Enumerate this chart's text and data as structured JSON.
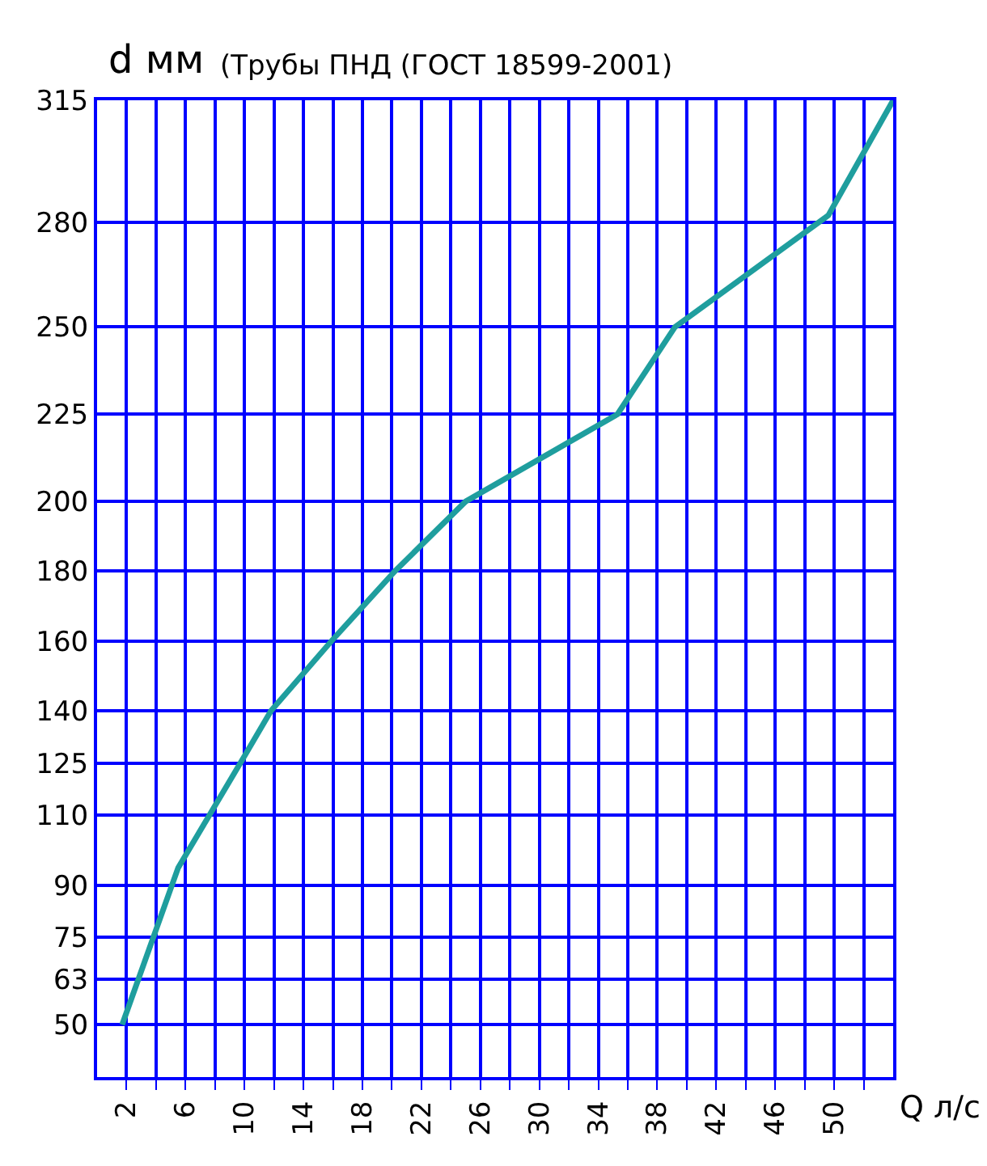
{
  "chart_data": {
    "type": "line",
    "title": "(Трубы ПНД (ГОСТ 18599-2001)",
    "xlabel": "Q л/с",
    "ylabel": "d мм",
    "x": [
      1.7,
      5.5,
      10,
      11.8,
      15.9,
      20.2,
      25,
      35.3,
      39.2,
      49.6,
      54
    ],
    "series": [
      {
        "color": "#1f9e9e",
        "values": [
          50,
          95,
          127,
          140,
          160,
          180,
          200,
          225,
          250,
          282,
          315
        ]
      }
    ],
    "xlim": [
      0,
      54
    ],
    "xticks": [
      2,
      {
        "value": 4,
        "label": null
      },
      6,
      {
        "value": 8,
        "label": null
      },
      10,
      {
        "value": 12,
        "label": null
      },
      14,
      {
        "value": 16,
        "label": null
      },
      18,
      {
        "value": 20,
        "label": null
      },
      22,
      {
        "value": 24,
        "label": null
      },
      26,
      {
        "value": 28,
        "label": null
      },
      30,
      {
        "value": 32,
        "label": null
      },
      34,
      {
        "value": 36,
        "label": null
      },
      38,
      {
        "value": 40,
        "label": null
      },
      42,
      {
        "value": 44,
        "label": null
      },
      46,
      {
        "value": 48,
        "label": null
      },
      50,
      {
        "value": 52,
        "label": null
      }
    ],
    "ylim": [
      35,
      315
    ],
    "yticks": [
      50,
      63,
      75,
      90,
      110,
      125,
      140,
      160,
      180,
      200,
      225,
      250,
      280,
      315
    ],
    "grid": true,
    "marker": "none",
    "line_style": "solid"
  }
}
